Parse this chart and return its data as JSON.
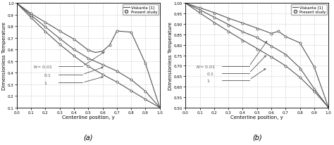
{
  "title_a": "(a)",
  "title_b": "(b)",
  "xlabel": "Centerline position, y",
  "ylabel": "Dimensionless Temperature",
  "xlim": [
    0,
    1
  ],
  "ylim_a": [
    0.1,
    1.0
  ],
  "ylim_b": [
    0.5,
    1.0
  ],
  "xticks": [
    0,
    0.1,
    0.2,
    0.3,
    0.4,
    0.5,
    0.6,
    0.7,
    0.8,
    0.9,
    1
  ],
  "yticks_a": [
    0.1,
    0.2,
    0.3,
    0.4,
    0.5,
    0.6,
    0.7,
    0.8,
    0.9,
    1.0
  ],
  "yticks_b": [
    0.5,
    0.55,
    0.6,
    0.65,
    0.7,
    0.75,
    0.8,
    0.85,
    0.9,
    0.95,
    1.0
  ],
  "gray": "#555555",
  "viskanta_N001_a_x": [
    0,
    0.1,
    0.2,
    0.3,
    0.4,
    0.5,
    0.55,
    0.6,
    0.65,
    0.7,
    0.8,
    0.9,
    1.0
  ],
  "viskanta_N001_a_y": [
    1.0,
    0.91,
    0.835,
    0.76,
    0.69,
    0.595,
    0.575,
    0.585,
    0.64,
    0.76,
    0.75,
    0.48,
    0.1
  ],
  "viskanta_N01_a_x": [
    0,
    0.1,
    0.2,
    0.3,
    0.4,
    0.5,
    0.6,
    0.7,
    0.8,
    0.9,
    1.0
  ],
  "viskanta_N01_a_y": [
    1.0,
    0.895,
    0.795,
    0.695,
    0.6,
    0.525,
    0.47,
    0.415,
    0.34,
    0.24,
    0.1
  ],
  "viskanta_N1_a_x": [
    0,
    0.1,
    0.2,
    0.3,
    0.4,
    0.5,
    0.6,
    0.7,
    0.8,
    0.9,
    1.0
  ],
  "viskanta_N1_a_y": [
    1.0,
    0.875,
    0.755,
    0.645,
    0.545,
    0.455,
    0.385,
    0.32,
    0.245,
    0.17,
    0.1
  ],
  "present_N001_a_x": [
    0.1,
    0.2,
    0.3,
    0.4,
    0.5,
    0.6,
    0.65,
    0.7,
    0.8,
    0.9,
    1.0
  ],
  "present_N001_a_y": [
    0.91,
    0.835,
    0.76,
    0.69,
    0.595,
    0.585,
    0.64,
    0.76,
    0.75,
    0.48,
    0.1
  ],
  "present_N01_a_x": [
    0.1,
    0.2,
    0.3,
    0.4,
    0.5,
    0.6,
    0.7,
    0.8,
    0.9,
    1.0
  ],
  "present_N01_a_y": [
    0.895,
    0.795,
    0.695,
    0.6,
    0.525,
    0.47,
    0.415,
    0.34,
    0.24,
    0.1
  ],
  "present_N1_a_x": [
    0.1,
    0.2,
    0.3,
    0.4,
    0.5,
    0.6,
    0.7,
    0.8,
    0.9,
    1.0
  ],
  "present_N1_a_y": [
    0.875,
    0.755,
    0.645,
    0.545,
    0.455,
    0.385,
    0.32,
    0.245,
    0.17,
    0.1
  ],
  "viskanta_N001_b_x": [
    0,
    0.1,
    0.2,
    0.3,
    0.4,
    0.5,
    0.55,
    0.6,
    0.65,
    0.7,
    0.8,
    0.9,
    1.0
  ],
  "viskanta_N001_b_y": [
    1.0,
    0.978,
    0.955,
    0.928,
    0.905,
    0.88,
    0.868,
    0.855,
    0.865,
    0.84,
    0.81,
    0.695,
    0.5
  ],
  "viskanta_N01_b_x": [
    0,
    0.1,
    0.2,
    0.3,
    0.4,
    0.5,
    0.6,
    0.7,
    0.8,
    0.9,
    1.0
  ],
  "viskanta_N01_b_y": [
    1.0,
    0.968,
    0.933,
    0.898,
    0.863,
    0.835,
    0.795,
    0.755,
    0.69,
    0.59,
    0.5
  ],
  "viskanta_N1_b_x": [
    0,
    0.1,
    0.2,
    0.3,
    0.4,
    0.5,
    0.6,
    0.7,
    0.8,
    0.9,
    1.0
  ],
  "viskanta_N1_b_y": [
    1.0,
    0.953,
    0.908,
    0.865,
    0.823,
    0.783,
    0.743,
    0.7,
    0.645,
    0.578,
    0.5
  ],
  "present_N001_b_x": [
    0.1,
    0.2,
    0.3,
    0.4,
    0.5,
    0.6,
    0.65,
    0.7,
    0.8,
    0.9,
    1.0
  ],
  "present_N001_b_y": [
    0.978,
    0.952,
    0.925,
    0.903,
    0.878,
    0.853,
    0.865,
    0.84,
    0.808,
    0.693,
    0.5
  ],
  "present_N01_b_x": [
    0.1,
    0.2,
    0.3,
    0.4,
    0.5,
    0.6,
    0.7,
    0.8,
    0.9,
    1.0
  ],
  "present_N01_b_y": [
    0.965,
    0.93,
    0.895,
    0.863,
    0.835,
    0.793,
    0.752,
    0.685,
    0.588,
    0.5
  ],
  "present_N1_b_x": [
    0.1,
    0.2,
    0.3,
    0.4,
    0.5,
    0.6,
    0.7,
    0.8,
    0.9,
    1.0
  ],
  "present_N1_b_y": [
    0.953,
    0.905,
    0.862,
    0.82,
    0.78,
    0.743,
    0.698,
    0.643,
    0.575,
    0.5
  ]
}
